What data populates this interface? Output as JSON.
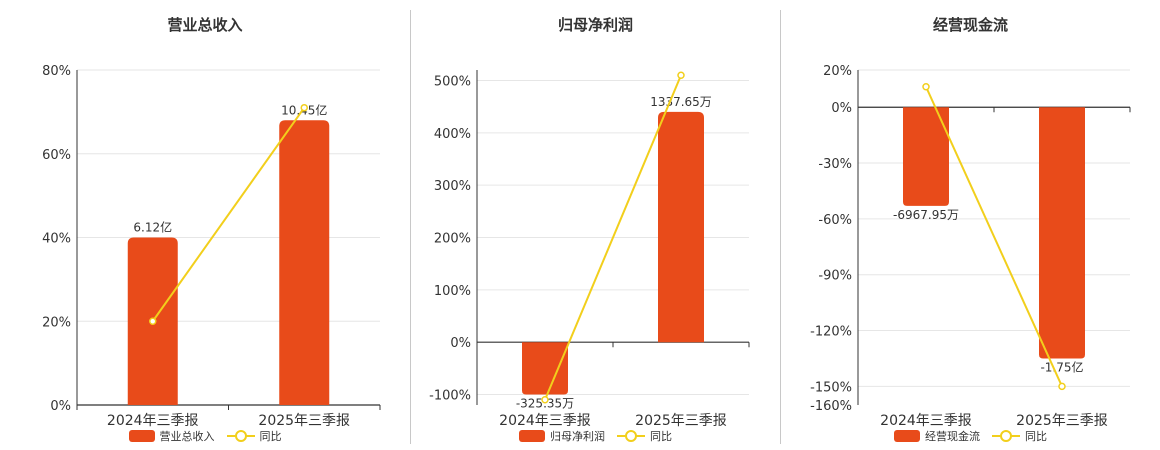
{
  "colors": {
    "bar": "#e84b1a",
    "line": "#f2cf1c",
    "axis": "#333333",
    "grid": "#e6e6e6",
    "text": "#333333"
  },
  "chart_data": [
    {
      "type": "bar",
      "title": "营业总收入",
      "categories": [
        "2024年三季报",
        "2025年三季报"
      ],
      "series": [
        {
          "name": "营业总收入",
          "type": "bar",
          "values": [
            40,
            68
          ],
          "labels": [
            "6.12亿",
            "10.45亿"
          ]
        },
        {
          "name": "同比",
          "type": "line",
          "values": [
            20,
            71
          ]
        }
      ],
      "yticks": [
        0,
        20,
        40,
        60,
        80
      ],
      "ytick_labels": [
        "0%",
        "20%",
        "40%",
        "60%",
        "80%"
      ],
      "ylim": [
        0,
        80
      ],
      "legend_position": "bottom",
      "grid": true
    },
    {
      "type": "bar",
      "title": "归母净利润",
      "categories": [
        "2024年三季报",
        "2025年三季报"
      ],
      "series": [
        {
          "name": "归母净利润",
          "type": "bar",
          "values": [
            -100,
            440
          ],
          "labels": [
            "-325.35万",
            "1337.65万"
          ]
        },
        {
          "name": "同比",
          "type": "line",
          "values": [
            -110,
            510
          ]
        }
      ],
      "yticks": [
        -100,
        0,
        100,
        200,
        300,
        400,
        500
      ],
      "ytick_labels": [
        "-100%",
        "0%",
        "100%",
        "200%",
        "300%",
        "400%",
        "500%"
      ],
      "ylim": [
        -120,
        520
      ],
      "legend_position": "bottom",
      "grid": true
    },
    {
      "type": "bar",
      "title": "经营现金流",
      "categories": [
        "2024年三季报",
        "2025年三季报"
      ],
      "series": [
        {
          "name": "经营现金流",
          "type": "bar",
          "values": [
            -53,
            -135
          ],
          "labels": [
            "-6967.95万",
            "-1.75亿"
          ]
        },
        {
          "name": "同比",
          "type": "line",
          "values": [
            11,
            -150
          ]
        }
      ],
      "yticks": [
        20,
        0,
        -30,
        -60,
        -90,
        -120,
        -150,
        -160
      ],
      "ytick_labels": [
        "20%",
        "0%",
        "-30%",
        "-60%",
        "-90%",
        "-120%",
        "-150%",
        "-160%"
      ],
      "ylim": [
        -160,
        20
      ],
      "legend_position": "bottom",
      "grid": true
    }
  ]
}
